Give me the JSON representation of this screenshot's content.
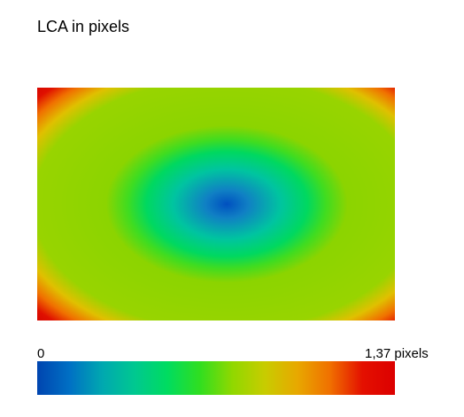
{
  "chart_data": {
    "type": "heatmap",
    "title": "LCA in pixels",
    "colorbar": {
      "lim": [
        0,
        1.37
      ],
      "ticks": [
        0,
        {
          "value": 1.37,
          "label": "1,37 pixels"
        }
      ],
      "colors": [
        "#0045b0",
        "#0070c4",
        "#00a8b0",
        "#00c890",
        "#00dc60",
        "#30de20",
        "#90d800",
        "#c8cc00",
        "#e8a800",
        "#f07000",
        "#e41000",
        "#dc0000"
      ]
    }
  }
}
